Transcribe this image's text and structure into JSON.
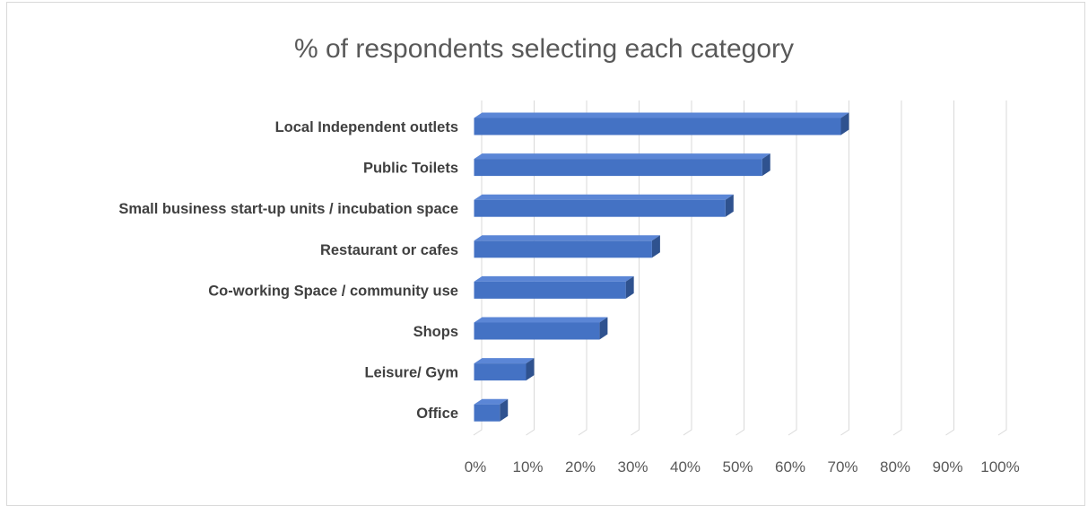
{
  "chart_data": {
    "type": "bar",
    "orientation": "horizontal",
    "title": "% of respondents selecting each category",
    "xlabel": "",
    "ylabel": "",
    "categories": [
      "Local Independent outlets",
      "Public Toilets",
      "Small business start-up units / incubation space",
      "Restaurant or cafes",
      "Co-working Space / community use",
      "Shops",
      "Leisure/ Gym",
      "Office"
    ],
    "values": [
      70,
      55,
      48,
      34,
      29,
      24,
      10,
      5
    ],
    "xlim": [
      0,
      100
    ],
    "x_ticks": [
      "0%",
      "10%",
      "20%",
      "30%",
      "40%",
      "50%",
      "60%",
      "70%",
      "80%",
      "90%",
      "100%"
    ],
    "grid": true,
    "legend": "none",
    "style": "3-D",
    "colors": {
      "bar_front": "#4472c4",
      "bar_top": "#5b86d6",
      "bar_side": "#2f528f",
      "grid": "#d9d9d9"
    }
  }
}
